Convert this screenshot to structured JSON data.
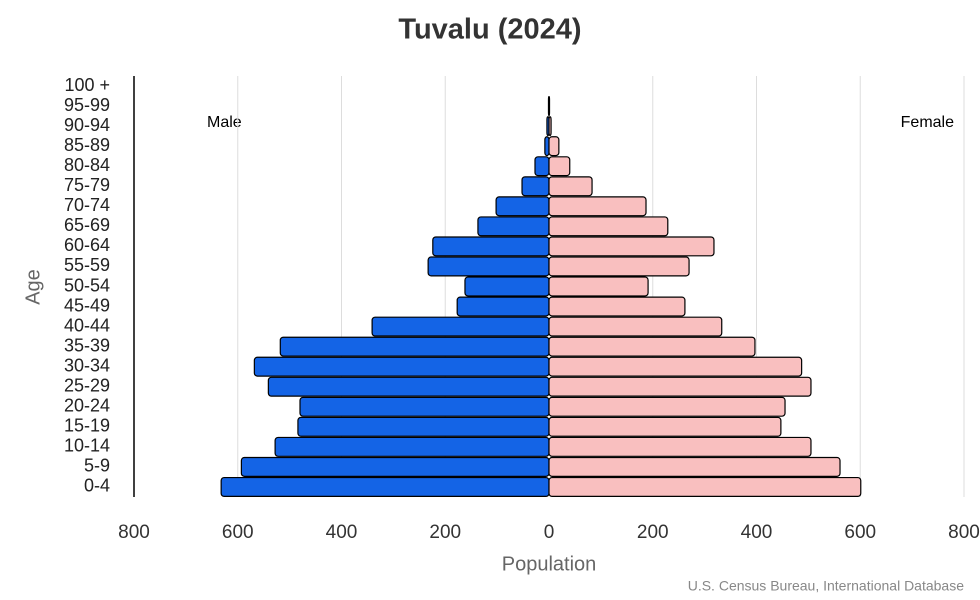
{
  "chart_data": {
    "type": "pyramid",
    "title": "Tuvalu (2024)",
    "x_label": "Population",
    "y_label": "Age",
    "source": "U.S. Census Bureau, International Database",
    "categories": [
      "0-4",
      "5-9",
      "10-14",
      "15-19",
      "20-24",
      "25-29",
      "30-34",
      "35-39",
      "40-44",
      "45-49",
      "50-54",
      "55-59",
      "60-64",
      "65-69",
      "70-74",
      "75-79",
      "80-84",
      "85-89",
      "90-94",
      "95-99",
      "100 +"
    ],
    "series": [
      {
        "name": "Male",
        "color": "#1464e6",
        "values": [
          632,
          593,
          528,
          484,
          480,
          541,
          568,
          518,
          341,
          177,
          162,
          233,
          224,
          137,
          102,
          52,
          27,
          8,
          4,
          1,
          0
        ]
      },
      {
        "name": "Female",
        "color": "#f9bfbf",
        "values": [
          601,
          561,
          505,
          447,
          455,
          505,
          487,
          397,
          333,
          262,
          191,
          270,
          318,
          229,
          187,
          83,
          40,
          19,
          4,
          1,
          0
        ]
      }
    ],
    "xlim": [
      0,
      800
    ],
    "xticks": [
      0,
      200,
      400,
      600,
      800
    ],
    "grid": true
  }
}
